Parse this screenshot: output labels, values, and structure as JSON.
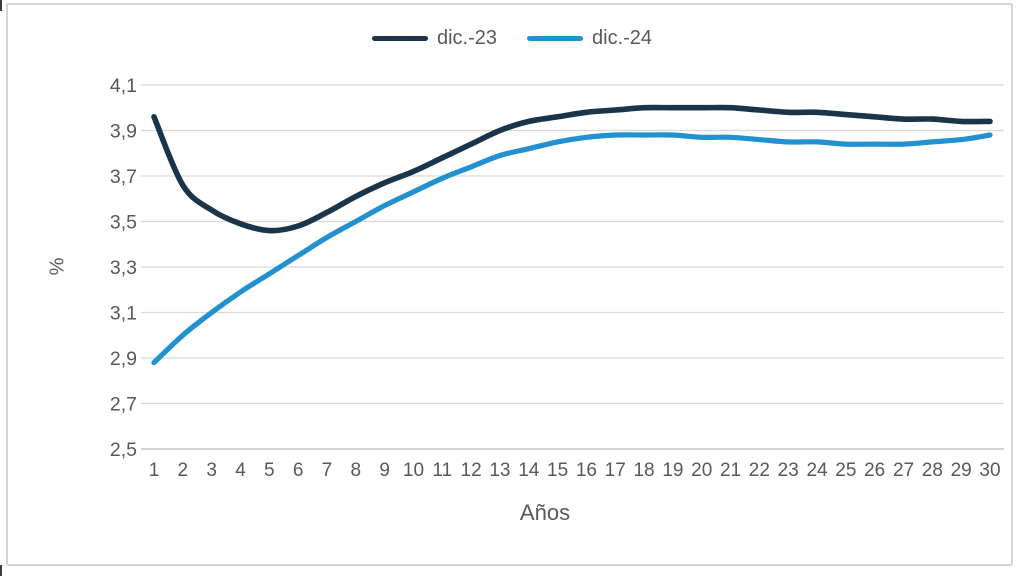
{
  "page": {
    "background": "#ffffff",
    "frame_border_color": "#d4d4d4"
  },
  "chart_data": {
    "type": "line",
    "title": "",
    "xlabel": "Años",
    "ylabel": "%",
    "categories": [
      "1",
      "2",
      "3",
      "4",
      "5",
      "6",
      "7",
      "8",
      "9",
      "10",
      "11",
      "12",
      "13",
      "14",
      "15",
      "16",
      "17",
      "18",
      "19",
      "20",
      "21",
      "22",
      "23",
      "24",
      "25",
      "26",
      "27",
      "28",
      "29",
      "30"
    ],
    "yticks": [
      "4,1",
      "3,9",
      "3,7",
      "3,5",
      "3,3",
      "3,1",
      "2,9",
      "2,7",
      "2,5"
    ],
    "ylim": [
      2.5,
      4.1
    ],
    "ytick_step": 0.2,
    "decimal_separator": "comma",
    "grid": "horizontal",
    "legend_position": "top-center",
    "series": [
      {
        "name": "dic.-23",
        "color": "#1a3449",
        "values": [
          3.96,
          3.66,
          3.55,
          3.49,
          3.46,
          3.48,
          3.54,
          3.61,
          3.67,
          3.72,
          3.78,
          3.84,
          3.9,
          3.94,
          3.96,
          3.98,
          3.99,
          4.0,
          4.0,
          4.0,
          4.0,
          3.99,
          3.98,
          3.98,
          3.97,
          3.96,
          3.95,
          3.95,
          3.94,
          3.94
        ]
      },
      {
        "name": "dic.-24",
        "color": "#2191d0",
        "values": [
          2.88,
          3.0,
          3.1,
          3.19,
          3.27,
          3.35,
          3.43,
          3.5,
          3.57,
          3.63,
          3.69,
          3.74,
          3.79,
          3.82,
          3.85,
          3.87,
          3.88,
          3.88,
          3.88,
          3.87,
          3.87,
          3.86,
          3.85,
          3.85,
          3.84,
          3.84,
          3.84,
          3.85,
          3.86,
          3.88
        ]
      }
    ],
    "colors": {
      "gridline": "#d9d9d9",
      "axis_line": "#c3c3c3",
      "tick_label": "#595959"
    }
  }
}
